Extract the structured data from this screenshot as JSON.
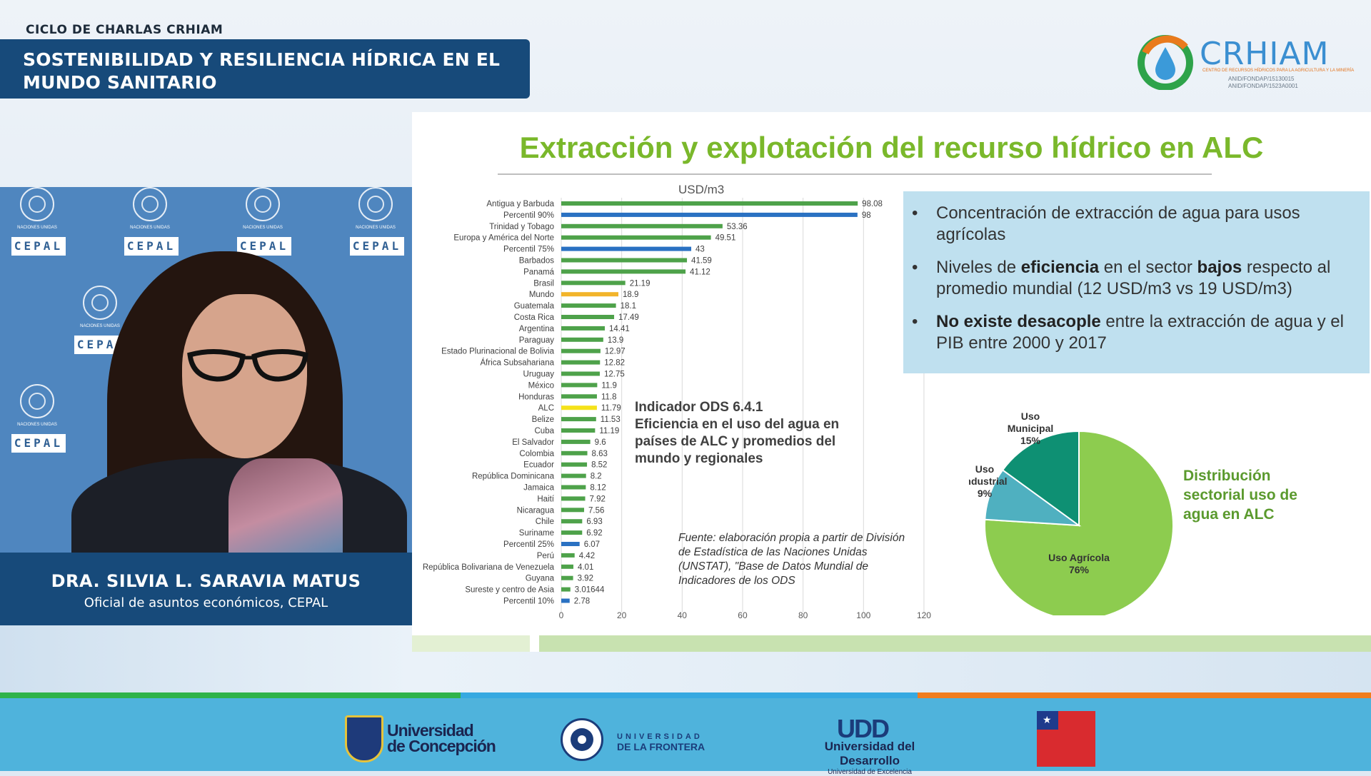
{
  "header": {
    "series": "CICLO DE CHARLAS CRHIAM",
    "title_line1": "SOSTENIBILIDAD Y RESILIENCIA HÍDRICA EN EL",
    "title_line2": "MUNDO SANITARIO"
  },
  "brand": {
    "name": "CRHIAM",
    "tagline": "CENTRO DE RECURSOS HÍDRICOS PARA LA AGRICULTURA Y LA MINERÍA",
    "code1": "ANID/FONDAP/15130015",
    "code2": "ANID/FONDAP/1523A0001"
  },
  "speaker": {
    "wall_nu": "NACIONES UNIDAS",
    "wall_cepal": "CEPAL",
    "name": "DRA. SILVIA L. SARAVIA MATUS",
    "role": "Oficial de asuntos económicos, CEPAL"
  },
  "slide": {
    "title": "Extracción y explotación del recurso hídrico en ALC",
    "bullets": [
      {
        "pre": "Concentración de extracción de agua para usos agrícolas",
        "bold": "",
        "mid": "",
        "bold2": "",
        "post": ""
      },
      {
        "pre": "Niveles de ",
        "bold": "eficiencia",
        "mid": " en el sector ",
        "bold2": "bajos",
        "post": " respecto al promedio mundial (12 USD/m3 vs 19 USD/m3)"
      },
      {
        "pre": "",
        "bold": "No existe desacople",
        "mid": " entre la extracción de agua y el PIB entre 2000 y 2017",
        "bold2": "",
        "post": ""
      }
    ],
    "ods_title": "Indicador ODS 6.4.1",
    "ods_body": "Eficiencia en el uso del agua en países de ALC y promedios del mundo y regionales",
    "fuente": "Fuente: elaboración propia a partir de División de Estadística de las Naciones Unidas (UNSTAT), \"Base de Datos Mundial de Indicadores de los ODS",
    "pie_caption": "Distribución sectorial uso de agua en ALC"
  },
  "chart_data": [
    {
      "type": "bar",
      "orientation": "horizontal",
      "unit_label": "USD/m3",
      "xlim": [
        0,
        120
      ],
      "xticks": [
        0,
        20,
        40,
        60,
        80,
        100,
        120
      ],
      "grid": true,
      "categories": [
        "Antigua y Barbuda",
        "Percentil 90%",
        "Trinidad y Tobago",
        "Europa y América del Norte",
        "Percentil 75%",
        "Barbados",
        "Panamá",
        "Brasil",
        "Mundo",
        "Guatemala",
        "Costa Rica",
        "Argentina",
        "Paraguay",
        "Estado Plurinacional de Bolivia",
        "África Subsahariana",
        "Uruguay",
        "México",
        "Honduras",
        "ALC",
        "Belize",
        "Cuba",
        "El Salvador",
        "Colombia",
        "Ecuador",
        "República Dominicana",
        "Jamaica",
        "Haití",
        "Nicaragua",
        "Chile",
        "Suriname",
        "Percentil 25%",
        "Perú",
        "República Bolivariana de Venezuela",
        "Guyana",
        "Sureste y centro de Asia",
        "Percentil 10%"
      ],
      "values": [
        98.08,
        98,
        53.36,
        49.51,
        43,
        41.59,
        41.12,
        21.19,
        18.9,
        18.1,
        17.49,
        14.41,
        13.9,
        12.97,
        12.82,
        12.75,
        11.9,
        11.8,
        11.79,
        11.53,
        11.19,
        9.6,
        8.63,
        8.52,
        8.2,
        8.12,
        7.92,
        7.56,
        6.93,
        6.92,
        6.07,
        4.42,
        4.01,
        3.92,
        3.01644,
        2.78
      ],
      "value_labels": [
        "98.08",
        "98",
        "53.36",
        "49.51",
        "43",
        "41.59",
        "41.12",
        "21.19",
        "18.9",
        "18.1",
        "17.49",
        "14.41",
        "13.9",
        "12.97",
        "12.82",
        "12.75",
        "11.9",
        "11.8",
        "11.79",
        "11.53",
        "11.19",
        "9.6",
        "8.63",
        "8.52",
        "8.2",
        "8.12",
        "7.92",
        "7.56",
        "6.93",
        "6.92",
        "6.07",
        "4.42",
        "4.01",
        "3.92",
        "3.01644",
        "2.78"
      ],
      "bar_colors": {
        "default": "#4ea24a",
        "percentile": "#2a71c2",
        "mundo": "#f2b42a",
        "alc": "#f5e21a"
      },
      "color_groups": [
        "default",
        "percentile",
        "default",
        "default",
        "percentile",
        "default",
        "default",
        "default",
        "mundo",
        "default",
        "default",
        "default",
        "default",
        "default",
        "default",
        "default",
        "default",
        "default",
        "alc",
        "default",
        "default",
        "default",
        "default",
        "default",
        "default",
        "default",
        "default",
        "default",
        "default",
        "default",
        "percentile",
        "default",
        "default",
        "default",
        "default",
        "percentile"
      ]
    },
    {
      "type": "pie",
      "slices": [
        {
          "label_lines": [
            "Uso Agrícola",
            "76%"
          ],
          "value": 76,
          "color": "#8dcc4f"
        },
        {
          "label_lines": [
            "Uso",
            "Industrial",
            "9%"
          ],
          "value": 9,
          "color": "#4fb0c0"
        },
        {
          "label_lines": [
            "Uso",
            "Municipal",
            "15%"
          ],
          "value": 15,
          "color": "#0e9073"
        }
      ]
    }
  ],
  "footer": {
    "udec": [
      "Universidad",
      "de Concepción"
    ],
    "ufro": [
      "UNIVERSIDAD",
      "DE LA FRONTERA"
    ],
    "udd_mark": "UDD",
    "udd": [
      "Universidad del Desarrollo",
      "Universidad de Excelencia"
    ],
    "stripe_colors": [
      "#2fb34a",
      "#36a9e1",
      "#f07d1e"
    ]
  }
}
